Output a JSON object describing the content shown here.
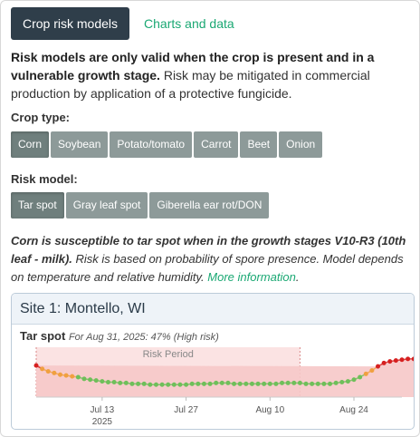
{
  "tabs": {
    "active": "Crop risk models",
    "other": "Charts and data"
  },
  "intro": {
    "bold": "Risk models are only valid when the crop is present and in a vulnerable growth stage.",
    "rest": " Risk may be mitigated in commercial production by application of a protective fungicide."
  },
  "crop_type": {
    "label": "Crop type:",
    "options": [
      "Corn",
      "Soybean",
      "Potato/tomato",
      "Carrot",
      "Beet",
      "Onion"
    ],
    "selected": "Corn"
  },
  "risk_model": {
    "label": "Risk model:",
    "options": [
      "Tar spot",
      "Gray leaf spot",
      "Giberella ear rot/DON"
    ],
    "selected": "Tar spot"
  },
  "description": {
    "bold": "Corn is susceptible to tar spot when in the growth stages V10-R3 (10th leaf - milk).",
    "rest": " Risk is based on probability of spore presence. Model depends on temperature and relative humidity.",
    "link": "More information",
    "end": "."
  },
  "site": {
    "title": "Site 1: Montello, WI",
    "model_name": "Tar spot",
    "summary": "For Aug 31, 2025: 47% (High risk)"
  },
  "chart_data": {
    "type": "line",
    "title": "",
    "xlabel": "",
    "ylabel": "",
    "period_label": "Risk Period",
    "x_start": "2025-07-02",
    "x_end": "2025-09-01",
    "risk_period": [
      "2025-07-02",
      "2025-08-15"
    ],
    "x_ticks": [
      {
        "date": "2025-07-13",
        "label": "Jul 13",
        "sublabel": "2025"
      },
      {
        "date": "2025-07-27",
        "label": "Jul 27",
        "sublabel": ""
      },
      {
        "date": "2025-08-10",
        "label": "Aug 10",
        "sublabel": ""
      },
      {
        "date": "2025-08-24",
        "label": "Aug 24",
        "sublabel": ""
      }
    ],
    "ylim": [
      0,
      60
    ],
    "high_threshold": 35,
    "series": [
      {
        "values": [
          38,
          34,
          31,
          29,
          27,
          26,
          25,
          24,
          22,
          21,
          20,
          19,
          18,
          18,
          17,
          17,
          16,
          16,
          16,
          15,
          15,
          15,
          15,
          15,
          15,
          15,
          16,
          16,
          16,
          16,
          17,
          17,
          17,
          16,
          16,
          16,
          16,
          16,
          16,
          16,
          16,
          17,
          17,
          17,
          17,
          16,
          16,
          16,
          16,
          16,
          17,
          18,
          19,
          21,
          24,
          28,
          32,
          37,
          41,
          43,
          44,
          45,
          46,
          46,
          47
        ]
      }
    ],
    "colors": {
      "low": "#6fbf5a",
      "medium": "#f0a040",
      "high": "#d62020",
      "period_fill": "#fbe3e3",
      "high_fill": "#f6c8c8"
    }
  }
}
